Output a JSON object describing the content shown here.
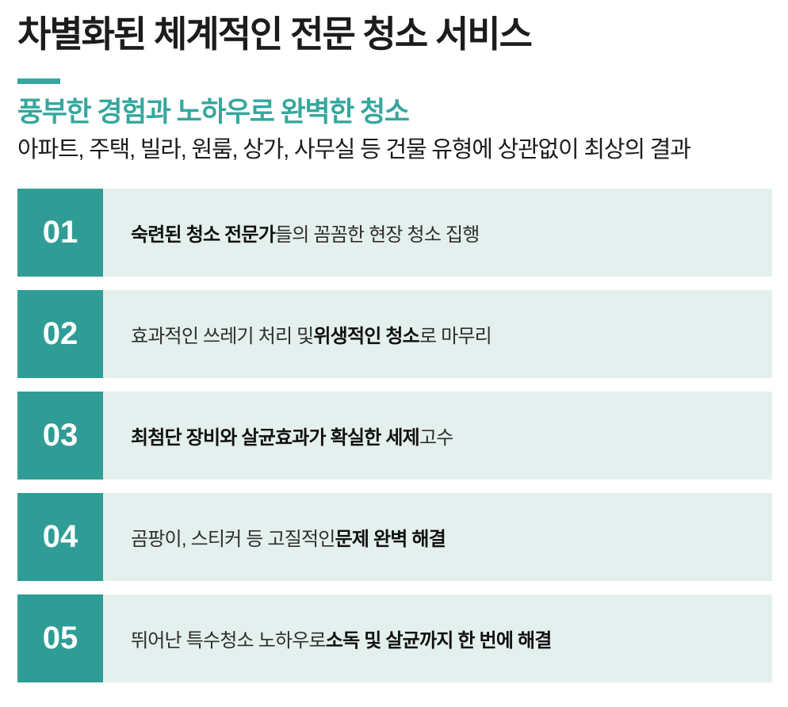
{
  "header": {
    "title": "차별화된 체계적인 전문 청소 서비스",
    "subtitle": "풍부한 경험과 노하우로 완벽한 청소",
    "description": "아파트, 주택, 빌라, 원룸, 상가, 사무실 등 건물 유형에 상관없이 최상의 결과"
  },
  "colors": {
    "accent_teal": "#2f9d95",
    "subtitle_teal": "#35a79d",
    "row_background": "#e4f0ee",
    "title_text": "#1c1c1c",
    "body_text": "#2e2e2e",
    "bold_text": "#111111",
    "number_text": "#ffffff"
  },
  "list": {
    "items": [
      {
        "number": "01",
        "segments": [
          {
            "text": "숙련된 청소 전문가",
            "bold": true
          },
          {
            "text": "들의 꼼꼼한 현장 청소 집행",
            "bold": false
          }
        ]
      },
      {
        "number": "02",
        "segments": [
          {
            "text": "효과적인 쓰레기 처리 및 ",
            "bold": false
          },
          {
            "text": "위생적인 청소",
            "bold": true
          },
          {
            "text": "로 마무리",
            "bold": false
          }
        ]
      },
      {
        "number": "03",
        "segments": [
          {
            "text": "최첨단 장비와 살균효과가 확실한 세제",
            "bold": true
          },
          {
            "text": " 고수",
            "bold": false
          }
        ]
      },
      {
        "number": "04",
        "segments": [
          {
            "text": "곰팡이, 스티커 등 고질적인 ",
            "bold": false
          },
          {
            "text": "문제 완벽 해결",
            "bold": true
          }
        ]
      },
      {
        "number": "05",
        "segments": [
          {
            "text": "뛰어난 특수청소 노하우로 ",
            "bold": false
          },
          {
            "text": "소독 및 살균까지 한 번에 해결",
            "bold": true
          }
        ]
      }
    ]
  }
}
